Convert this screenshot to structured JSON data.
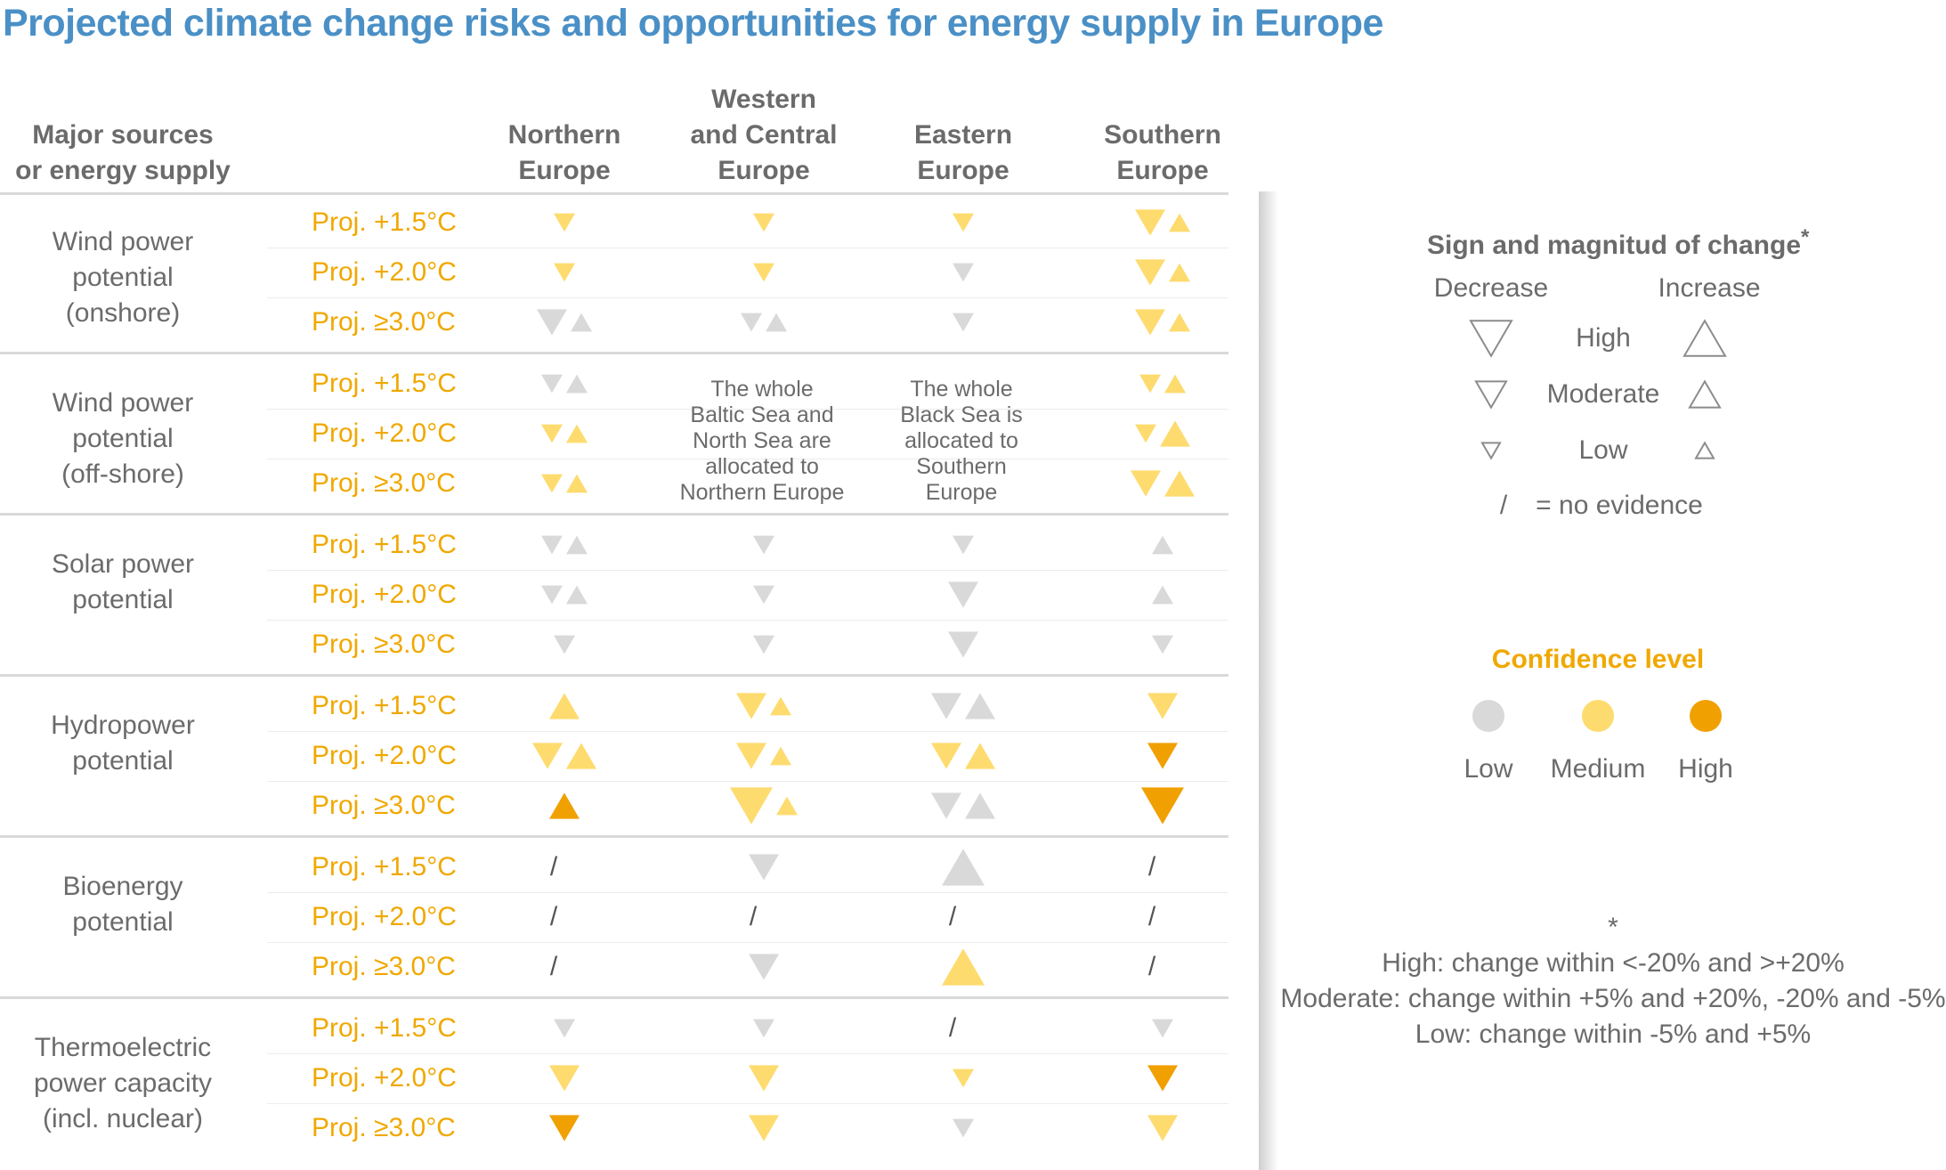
{
  "title": "Projected climate change risks and opportunities for energy supply in Europe",
  "header": {
    "col0": [
      "Major sources",
      "or energy supply"
    ],
    "regions": [
      [
        "Northern",
        "Europe"
      ],
      [
        "Western",
        "and Central",
        "Europe"
      ],
      [
        "Eastern",
        "Europe"
      ],
      [
        "Southern",
        "Europe"
      ]
    ]
  },
  "scenarios": [
    "Proj. +1.5°C",
    "Proj. +2.0°C",
    "Proj. ≥3.0°C"
  ],
  "sources": [
    [
      "Wind power",
      "potential",
      "(onshore)"
    ],
    [
      "Wind power",
      "potential",
      "(off-shore)"
    ],
    [
      "Solar power",
      "potential"
    ],
    [
      "Hydropower",
      "potential"
    ],
    [
      "Bioenergy",
      "potential"
    ],
    [
      "Thermoelectric",
      "power capacity",
      "(incl. nuclear)"
    ]
  ],
  "notes": {
    "western_offshore": [
      "The whole",
      "Baltic Sea and",
      "North Sea are",
      "allocated to",
      "Northern Europe"
    ],
    "eastern_offshore": [
      "The whole",
      "Black Sea is",
      "allocated to",
      "Southern",
      "Europe"
    ]
  },
  "colors": {
    "low": "#d9d9d9",
    "medium": "#fedb6e",
    "high": "#f0a000",
    "legend_outline": "#8c8c8c"
  },
  "chart_data": {
    "type": "table",
    "encoding": "each cell lists symbols: direction (down=decrease, up=increase), magnitude (low/moderate/high), confidence (low/medium/high); 'none' = no evidence (/)",
    "cells": [
      [
        [
          [
            [
              "down",
              "moderate",
              "medium"
            ]
          ],
          [
            [
              "down",
              "moderate",
              "medium"
            ]
          ],
          [
            [
              "down",
              "moderate",
              "medium"
            ]
          ],
          [
            [
              "down",
              "high",
              "medium"
            ],
            [
              "up",
              "moderate",
              "medium"
            ]
          ]
        ],
        [
          [
            [
              "down",
              "moderate",
              "medium"
            ]
          ],
          [
            [
              "down",
              "moderate",
              "medium"
            ]
          ],
          [
            [
              "down",
              "moderate",
              "low"
            ]
          ],
          [
            [
              "down",
              "high",
              "medium"
            ],
            [
              "up",
              "moderate",
              "medium"
            ]
          ]
        ],
        [
          [
            [
              "down",
              "high",
              "low"
            ],
            [
              "up",
              "moderate",
              "low"
            ]
          ],
          [
            [
              "down",
              "moderate",
              "low"
            ],
            [
              "up",
              "moderate",
              "low"
            ]
          ],
          [
            [
              "down",
              "moderate",
              "low"
            ]
          ],
          [
            [
              "down",
              "high",
              "medium"
            ],
            [
              "up",
              "moderate",
              "medium"
            ]
          ]
        ]
      ],
      [
        [
          [
            [
              "down",
              "moderate",
              "low"
            ],
            [
              "up",
              "moderate",
              "low"
            ]
          ],
          "note",
          "note",
          [
            [
              "down",
              "moderate",
              "medium"
            ],
            [
              "up",
              "moderate",
              "medium"
            ]
          ]
        ],
        [
          [
            [
              "down",
              "moderate",
              "medium"
            ],
            [
              "up",
              "moderate",
              "medium"
            ]
          ],
          "note",
          "note",
          [
            [
              "down",
              "moderate",
              "medium"
            ],
            [
              "up",
              "high",
              "medium"
            ]
          ]
        ],
        [
          [
            [
              "down",
              "moderate",
              "medium"
            ],
            [
              "up",
              "moderate",
              "medium"
            ]
          ],
          "note",
          "note",
          [
            [
              "down",
              "high",
              "medium"
            ],
            [
              "up",
              "high",
              "medium"
            ]
          ]
        ]
      ],
      [
        [
          [
            [
              "down",
              "moderate",
              "low"
            ],
            [
              "up",
              "moderate",
              "low"
            ]
          ],
          [
            [
              "down",
              "moderate",
              "low"
            ]
          ],
          [
            [
              "down",
              "moderate",
              "low"
            ]
          ],
          [
            [
              "up",
              "moderate",
              "low"
            ]
          ]
        ],
        [
          [
            [
              "down",
              "moderate",
              "low"
            ],
            [
              "up",
              "moderate",
              "low"
            ]
          ],
          [
            [
              "down",
              "moderate",
              "low"
            ]
          ],
          [
            [
              "down",
              "high",
              "low"
            ]
          ],
          [
            [
              "up",
              "moderate",
              "low"
            ]
          ]
        ],
        [
          [
            [
              "down",
              "moderate",
              "low"
            ]
          ],
          [
            [
              "down",
              "moderate",
              "low"
            ]
          ],
          [
            [
              "down",
              "high",
              "low"
            ]
          ],
          [
            [
              "down",
              "moderate",
              "low"
            ]
          ]
        ]
      ],
      [
        [
          [
            [
              "up",
              "high",
              "medium"
            ]
          ],
          [
            [
              "down",
              "high",
              "medium"
            ],
            [
              "up",
              "moderate",
              "medium"
            ]
          ],
          [
            [
              "down",
              "high",
              "low"
            ],
            [
              "up",
              "high",
              "low"
            ]
          ],
          [
            [
              "down",
              "high",
              "medium"
            ]
          ]
        ],
        [
          [
            [
              "down",
              "high",
              "medium"
            ],
            [
              "up",
              "high",
              "medium"
            ]
          ],
          [
            [
              "down",
              "high",
              "medium"
            ],
            [
              "up",
              "moderate",
              "medium"
            ]
          ],
          [
            [
              "down",
              "high",
              "medium"
            ],
            [
              "up",
              "high",
              "medium"
            ]
          ],
          [
            [
              "down",
              "high",
              "high"
            ]
          ]
        ],
        [
          [
            [
              "up",
              "high",
              "high"
            ]
          ],
          [
            [
              "down",
              "xhigh",
              "medium"
            ],
            [
              "up",
              "moderate",
              "medium"
            ]
          ],
          [
            [
              "down",
              "high",
              "low"
            ],
            [
              "up",
              "high",
              "low"
            ]
          ],
          [
            [
              "down",
              "xhigh",
              "high"
            ]
          ]
        ]
      ],
      [
        [
          "none",
          [
            [
              "down",
              "high",
              "low"
            ]
          ],
          [
            [
              "up",
              "xhigh",
              "low"
            ]
          ],
          "none"
        ],
        [
          "none",
          "none",
          "none",
          "none"
        ],
        [
          "none",
          [
            [
              "down",
              "high",
              "low"
            ]
          ],
          [
            [
              "up",
              "xhigh",
              "medium"
            ]
          ],
          "none"
        ]
      ],
      [
        [
          [
            [
              "down",
              "moderate",
              "low"
            ]
          ],
          [
            [
              "down",
              "moderate",
              "low"
            ]
          ],
          "none",
          [
            [
              "down",
              "moderate",
              "low"
            ]
          ]
        ],
        [
          [
            [
              "down",
              "high",
              "medium"
            ]
          ],
          [
            [
              "down",
              "high",
              "medium"
            ]
          ],
          [
            [
              "down",
              "moderate",
              "medium"
            ]
          ],
          [
            [
              "down",
              "high",
              "high"
            ]
          ]
        ],
        [
          [
            [
              "down",
              "high",
              "high"
            ]
          ],
          [
            [
              "down",
              "high",
              "medium"
            ]
          ],
          [
            [
              "down",
              "moderate",
              "low"
            ]
          ],
          [
            [
              "down",
              "high",
              "medium"
            ]
          ]
        ]
      ]
    ]
  },
  "legend": {
    "title": "Sign and magnitud of change",
    "asterisk": "*",
    "decrease": "Decrease",
    "increase": "Increase",
    "levels": [
      "High",
      "Moderate",
      "Low"
    ],
    "slash": "/",
    "no_evidence": "= no evidence"
  },
  "confidence": {
    "title": "Confidence level",
    "levels": [
      "Low",
      "Medium",
      "High"
    ]
  },
  "footnote": {
    "asterisk": "*",
    "lines": [
      "High: change within <-20% and >+20%",
      "Moderate: change within +5% and +20%, -20% and -5%",
      "Low: change within -5% and +5%"
    ]
  }
}
